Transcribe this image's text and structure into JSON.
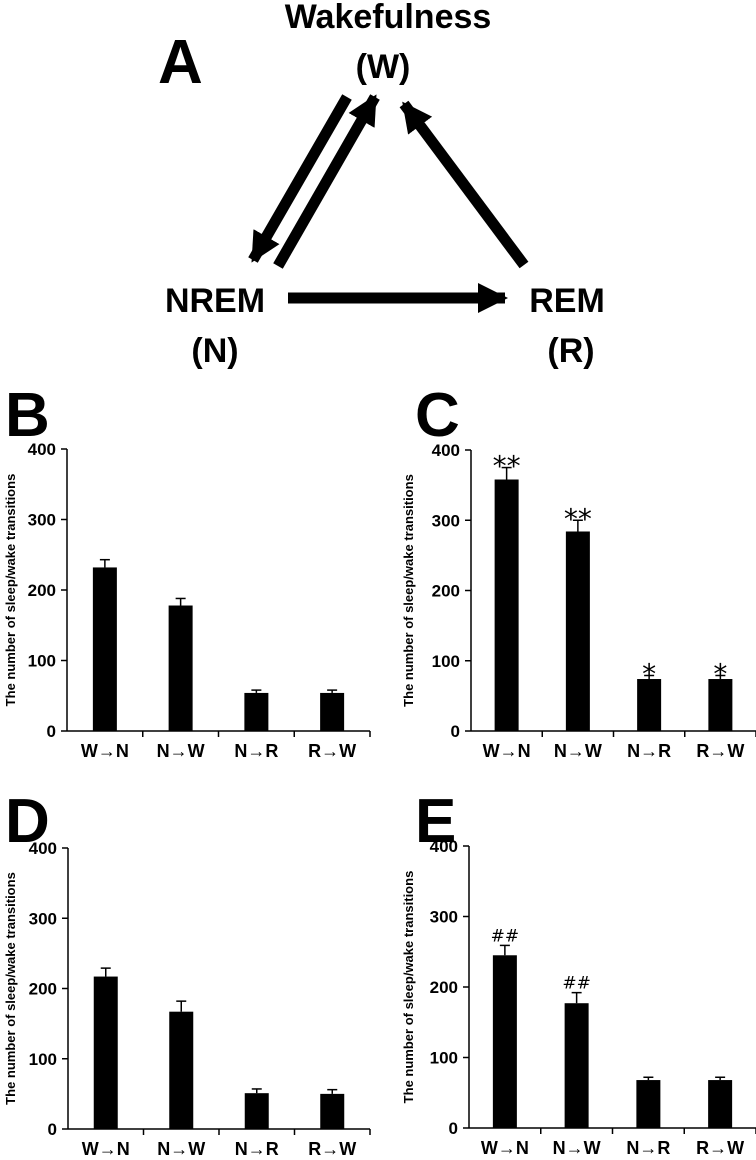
{
  "panel_a": {
    "letter": "A",
    "wake_name": "Wakefulness",
    "wake_abbr": "(W)",
    "nrem_name": "NREM",
    "nrem_abbr": "(N)",
    "rem_name": "REM",
    "rem_abbr": "(R)"
  },
  "colors": {
    "bar": "#000000",
    "axis": "#000000",
    "background": "#ffffff"
  },
  "chart_data": [
    {
      "panel": "B",
      "type": "bar",
      "categories": [
        "W→N",
        "N→W",
        "N→R",
        "R→W"
      ],
      "values": [
        232,
        178,
        54,
        54
      ],
      "errors": [
        11,
        10,
        4,
        4
      ],
      "annotations": [
        "",
        "",
        "",
        ""
      ],
      "ylabel": "The number of sleep/wake transitions",
      "yticks": [
        0,
        100,
        200,
        300,
        400
      ],
      "ylim": [
        0,
        400
      ],
      "grid": false
    },
    {
      "panel": "C",
      "type": "bar",
      "categories": [
        "W→N",
        "N→W",
        "N→R",
        "R→W"
      ],
      "values": [
        358,
        284,
        74,
        74
      ],
      "errors": [
        17,
        16,
        5,
        5
      ],
      "annotations": [
        "**",
        "**",
        "*",
        "*"
      ],
      "ylabel": "The number of sleep/wake transitions",
      "yticks": [
        0,
        100,
        200,
        300,
        400
      ],
      "ylim": [
        0,
        400
      ],
      "grid": false
    },
    {
      "panel": "D",
      "type": "bar",
      "categories": [
        "W→N",
        "N→W",
        "N→R",
        "R→W"
      ],
      "values": [
        217,
        167,
        51,
        50
      ],
      "errors": [
        12,
        15,
        6,
        6
      ],
      "annotations": [
        "",
        "",
        "",
        ""
      ],
      "ylabel": "The number of sleep/wake transitions",
      "yticks": [
        0,
        100,
        200,
        300,
        400
      ],
      "ylim": [
        0,
        400
      ],
      "grid": false
    },
    {
      "panel": "E",
      "type": "bar",
      "categories": [
        "W→N",
        "N→W",
        "N→R",
        "R→W"
      ],
      "values": [
        245,
        177,
        68,
        68
      ],
      "errors": [
        14,
        15,
        4,
        4
      ],
      "annotations": [
        "##",
        "##",
        "",
        ""
      ],
      "ylabel": "The number of sleep/wake transitions",
      "yticks": [
        0,
        100,
        200,
        300,
        400
      ],
      "ylim": [
        0,
        400
      ],
      "grid": false
    }
  ]
}
